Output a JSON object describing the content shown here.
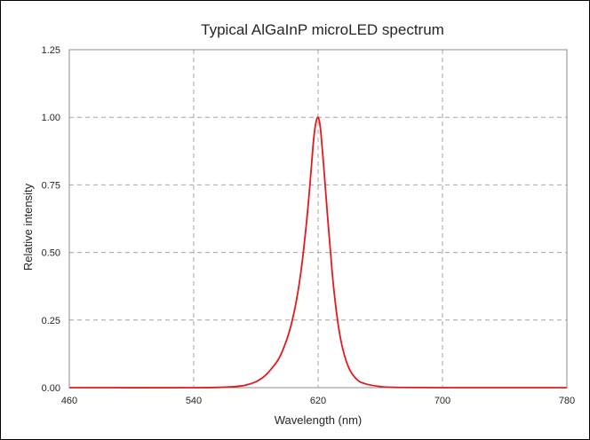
{
  "chart_data": {
    "type": "line",
    "title": "Typical AlGaInP microLED spectrum",
    "xlabel": "Wavelength (nm)",
    "ylabel": "Relative intensity",
    "xlim": [
      460,
      780
    ],
    "ylim": [
      0,
      1.25
    ],
    "x_ticks": [
      "460",
      "540",
      "620",
      "700",
      "780"
    ],
    "y_ticks": [
      "0.00",
      "0.25",
      "0.50",
      "0.75",
      "1.00",
      "1.25"
    ],
    "grid": true,
    "legend": "none",
    "series": [
      {
        "color": "#e31a1c",
        "x": [
          460,
          540,
          560,
          570,
          575,
          580,
          585,
          590,
          595,
          600,
          603,
          606,
          609,
          612,
          614,
          616,
          617,
          618,
          619,
          620,
          621,
          622,
          624,
          626,
          628,
          630,
          633,
          636,
          640,
          645,
          650,
          660,
          670,
          700,
          780
        ],
        "y": [
          0.0,
          0.0,
          0.002,
          0.006,
          0.012,
          0.022,
          0.04,
          0.07,
          0.11,
          0.18,
          0.24,
          0.32,
          0.43,
          0.58,
          0.7,
          0.84,
          0.91,
          0.96,
          0.99,
          1.0,
          0.98,
          0.93,
          0.79,
          0.64,
          0.5,
          0.37,
          0.23,
          0.14,
          0.07,
          0.03,
          0.015,
          0.004,
          0.001,
          0.0,
          0.0
        ]
      }
    ]
  }
}
